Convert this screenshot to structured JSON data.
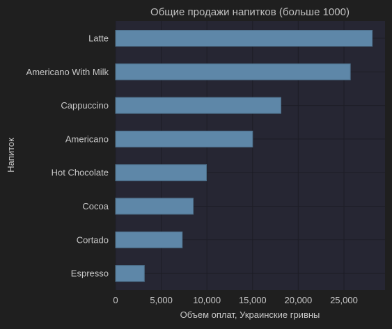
{
  "chart_data": {
    "type": "bar",
    "orientation": "horizontal",
    "title": "Общие продажи напитков (больше 1000)",
    "xlabel": "Объем оплат, Украинские гривны",
    "ylabel": "Напиток",
    "categories": [
      "Latte",
      "Americano With Milk",
      "Cappuccino",
      "Americano",
      "Hot Chocolate",
      "Cocoa",
      "Cortado",
      "Espresso"
    ],
    "values": [
      28100,
      25700,
      18100,
      15000,
      9950,
      8500,
      7300,
      3150
    ],
    "xlim": [
      0,
      29500
    ],
    "xticks": [
      0,
      5000,
      10000,
      15000,
      20000,
      25000
    ],
    "xtick_labels": [
      "0",
      "5,000",
      "10,000",
      "15,000",
      "20,000",
      "25,000"
    ],
    "grid": true,
    "colors": {
      "background": "#1f1f1f",
      "plot_background": "#262633",
      "bar": "#5e87a8",
      "bar_edge": "#4d6f8a",
      "grid": "#1d1d26",
      "text": "#c8c8c8",
      "title": "#c0c0c0"
    }
  }
}
